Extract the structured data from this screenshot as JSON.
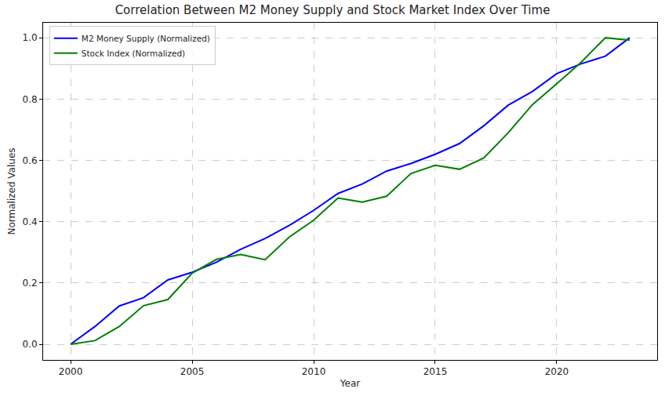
{
  "chart_data": {
    "type": "line",
    "title": "Correlation Between M2 Money Supply and Stock Market Index Over Time",
    "x_label": "Year",
    "y_label": "Normalized Values",
    "x": [
      2000,
      2001,
      2002,
      2003,
      2004,
      2005,
      2006,
      2007,
      2008,
      2009,
      2010,
      2011,
      2012,
      2013,
      2014,
      2015,
      2016,
      2017,
      2018,
      2019,
      2020,
      2021,
      2022,
      2023
    ],
    "series": [
      {
        "name": "M2 Money Supply (Normalized)",
        "color": "#0000ff",
        "values": [
          0,
          0.058,
          0.125,
          0.152,
          0.21,
          0.235,
          0.268,
          0.31,
          0.345,
          0.388,
          0.437,
          0.492,
          0.523,
          0.565,
          0.59,
          0.62,
          0.655,
          0.713,
          0.78,
          0.825,
          0.883,
          0.915,
          0.94,
          1.0
        ]
      },
      {
        "name": "Stock Index (Normalized)",
        "color": "#008000",
        "values": [
          0,
          0.012,
          0.058,
          0.126,
          0.146,
          0.232,
          0.277,
          0.293,
          0.276,
          0.35,
          0.405,
          0.477,
          0.464,
          0.483,
          0.557,
          0.584,
          0.571,
          0.608,
          0.69,
          0.782,
          0.85,
          0.92,
          1.0,
          0.992
        ]
      }
    ],
    "xlim": [
      1998.87,
      2024.13
    ],
    "xticks": [
      2000,
      2005,
      2010,
      2015,
      2020
    ],
    "ylim": [
      -0.051,
      1.049
    ],
    "yticks": [
      {
        "value": 0,
        "label": "0.0"
      },
      {
        "value": 0.2,
        "label": "0.2"
      },
      {
        "value": 0.4,
        "label": "0.4"
      },
      {
        "value": 0.6,
        "label": "0.6"
      },
      {
        "value": 0.8,
        "label": "0.8"
      },
      {
        "value": 1.0,
        "label": "1.0"
      }
    ],
    "grid": true,
    "legend": "upper left"
  }
}
